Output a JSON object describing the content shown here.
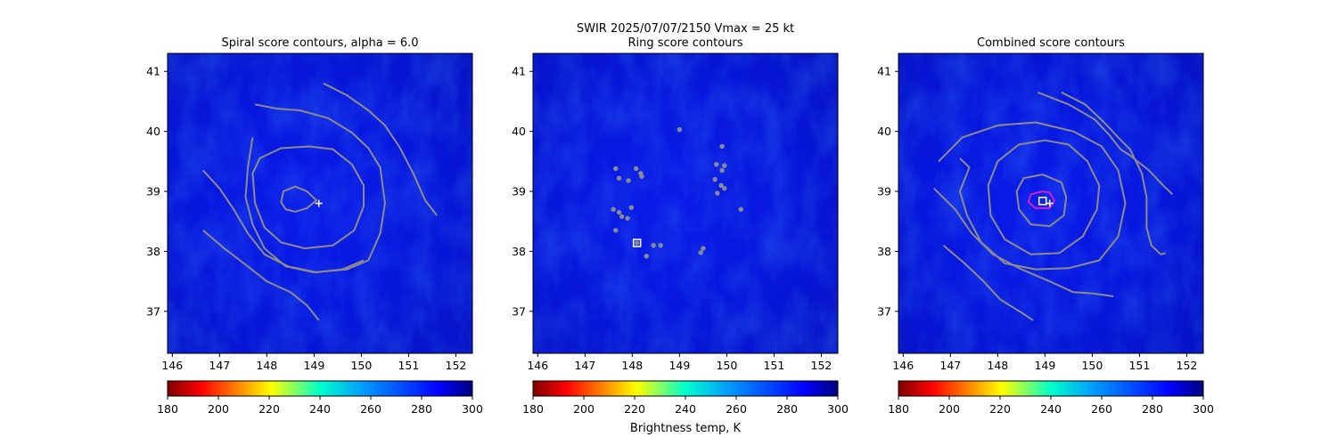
{
  "figure": {
    "suptitle_line1": "SWIR  2025/07/07/2150    Vmax = 25 kt",
    "colorbar_label": "Brightness temp, K"
  },
  "chart_data": [
    {
      "type": "heatmap",
      "title": "Spiral score contours, alpha =  6.0",
      "xlim": [
        145.9,
        152.35
      ],
      "ylim": [
        36.3,
        41.3
      ],
      "xticks": [
        146,
        147,
        148,
        149,
        150,
        151,
        152
      ],
      "yticks": [
        37,
        38,
        39,
        40,
        41
      ],
      "background_colormap": "jet",
      "color_range": [
        180,
        300
      ],
      "colorbar_ticks": [
        180,
        200,
        220,
        240,
        260,
        280,
        300
      ],
      "contour_color": "#8c8c8c",
      "markers": [
        {
          "kind": "plus",
          "x": 149.1,
          "y": 38.8,
          "color": "#ffffff"
        }
      ],
      "contours": [
        {
          "points": [
            [
              148.85,
              39.0
            ],
            [
              148.6,
              39.08
            ],
            [
              148.35,
              39.0
            ],
            [
              148.3,
              38.82
            ],
            [
              148.4,
              38.7
            ],
            [
              148.6,
              38.66
            ],
            [
              148.85,
              38.72
            ],
            [
              149.05,
              38.85
            ],
            [
              148.85,
              39.0
            ]
          ],
          "closed": true
        },
        {
          "points": [
            [
              148.9,
              39.75
            ],
            [
              148.3,
              39.72
            ],
            [
              147.85,
              39.55
            ],
            [
              147.7,
              39.3
            ],
            [
              147.75,
              38.8
            ],
            [
              147.95,
              38.4
            ],
            [
              148.3,
              38.15
            ],
            [
              148.8,
              38.05
            ],
            [
              149.4,
              38.1
            ],
            [
              149.85,
              38.35
            ],
            [
              150.05,
              38.75
            ],
            [
              150.05,
              39.1
            ],
            [
              149.8,
              39.45
            ],
            [
              149.4,
              39.7
            ],
            [
              148.9,
              39.75
            ]
          ],
          "closed": true
        },
        {
          "points": [
            [
              147.75,
              40.45
            ],
            [
              148.2,
              40.38
            ],
            [
              148.7,
              40.35
            ],
            [
              149.3,
              40.22
            ],
            [
              149.8,
              39.98
            ],
            [
              150.15,
              39.72
            ],
            [
              150.4,
              39.4
            ],
            [
              150.5,
              38.8
            ],
            [
              150.4,
              38.3
            ],
            [
              150.15,
              37.85
            ],
            [
              149.7,
              37.7
            ],
            [
              149.0,
              37.65
            ],
            [
              148.4,
              37.75
            ],
            [
              147.95,
              38.05
            ],
            [
              147.7,
              38.45
            ],
            [
              147.55,
              38.9
            ],
            [
              147.6,
              39.4
            ],
            [
              147.7,
              39.9
            ]
          ],
          "closed": false
        },
        {
          "points": [
            [
              146.65,
              39.35
            ],
            [
              147.0,
              39.05
            ],
            [
              147.3,
              38.7
            ],
            [
              147.6,
              38.3
            ],
            [
              147.95,
              37.95
            ],
            [
              148.45,
              37.75
            ],
            [
              149.05,
              37.65
            ],
            [
              149.6,
              37.7
            ],
            [
              150.05,
              37.85
            ]
          ],
          "closed": false
        },
        {
          "points": [
            [
              149.2,
              40.8
            ],
            [
              149.7,
              40.6
            ],
            [
              150.15,
              40.35
            ],
            [
              150.5,
              40.1
            ],
            [
              150.8,
              39.75
            ],
            [
              151.1,
              39.3
            ],
            [
              151.35,
              38.85
            ],
            [
              151.6,
              38.6
            ]
          ],
          "closed": false
        },
        {
          "points": [
            [
              146.65,
              38.35
            ],
            [
              147.1,
              38.05
            ],
            [
              147.6,
              37.75
            ],
            [
              148.0,
              37.5
            ],
            [
              148.5,
              37.32
            ],
            [
              148.85,
              37.1
            ],
            [
              149.1,
              36.85
            ]
          ],
          "closed": false
        }
      ]
    },
    {
      "type": "heatmap",
      "title": "Ring score contours",
      "xlim": [
        145.9,
        152.35
      ],
      "ylim": [
        36.3,
        41.3
      ],
      "xticks": [
        146,
        147,
        148,
        149,
        150,
        151,
        152
      ],
      "yticks": [
        37,
        38,
        39,
        40,
        41
      ],
      "background_colormap": "jet",
      "color_range": [
        180,
        300
      ],
      "colorbar_ticks": [
        180,
        200,
        220,
        240,
        260,
        280,
        300
      ],
      "contour_color": "#8c8c8c",
      "markers": [
        {
          "kind": "square",
          "x": 148.1,
          "y": 38.14,
          "color": "#ffffff"
        }
      ],
      "blobs": [
        [
          147.65,
          39.38
        ],
        [
          147.72,
          39.22
        ],
        [
          147.92,
          39.18
        ],
        [
          148.08,
          39.38
        ],
        [
          148.18,
          39.3
        ],
        [
          148.2,
          39.25
        ],
        [
          147.6,
          38.7
        ],
        [
          147.72,
          38.65
        ],
        [
          147.78,
          38.58
        ],
        [
          147.9,
          38.55
        ],
        [
          147.98,
          38.73
        ],
        [
          147.65,
          38.35
        ],
        [
          148.1,
          38.14
        ],
        [
          148.3,
          37.92
        ],
        [
          148.45,
          38.1
        ],
        [
          148.6,
          38.1
        ],
        [
          149.0,
          40.03
        ],
        [
          149.9,
          39.75
        ],
        [
          149.78,
          39.45
        ],
        [
          149.95,
          39.43
        ],
        [
          149.9,
          39.35
        ],
        [
          149.75,
          39.2
        ],
        [
          149.88,
          39.1
        ],
        [
          149.95,
          39.05
        ],
        [
          149.8,
          38.97
        ],
        [
          150.3,
          38.7
        ],
        [
          149.5,
          38.05
        ],
        [
          149.45,
          37.98
        ]
      ]
    },
    {
      "type": "heatmap",
      "title": "Combined score contours",
      "xlim": [
        145.9,
        152.35
      ],
      "ylim": [
        36.3,
        41.3
      ],
      "xticks": [
        146,
        147,
        148,
        149,
        150,
        151,
        152
      ],
      "yticks": [
        37,
        38,
        39,
        40,
        41
      ],
      "background_colormap": "jet",
      "color_range": [
        180,
        300
      ],
      "colorbar_ticks": [
        180,
        200,
        220,
        240,
        260,
        280,
        300
      ],
      "contour_color": "#8c8c8c",
      "markers": [
        {
          "kind": "square",
          "x": 148.95,
          "y": 38.84,
          "color": "#ffffff"
        },
        {
          "kind": "plus",
          "x": 149.1,
          "y": 38.8,
          "color": "#ffffff"
        }
      ],
      "magenta_ring": [
        [
          148.95,
          39.0
        ],
        [
          148.7,
          38.95
        ],
        [
          148.65,
          38.82
        ],
        [
          148.8,
          38.72
        ],
        [
          149.1,
          38.72
        ],
        [
          149.2,
          38.85
        ],
        [
          149.1,
          38.98
        ],
        [
          148.95,
          39.0
        ]
      ],
      "contours": [
        {
          "points": [
            [
              148.95,
              39.28
            ],
            [
              148.55,
              39.22
            ],
            [
              148.4,
              39.0
            ],
            [
              148.45,
              38.7
            ],
            [
              148.7,
              38.45
            ],
            [
              149.1,
              38.42
            ],
            [
              149.4,
              38.6
            ],
            [
              149.45,
              38.9
            ],
            [
              149.35,
              39.15
            ],
            [
              148.95,
              39.28
            ]
          ],
          "closed": true
        },
        {
          "points": [
            [
              149.0,
              39.85
            ],
            [
              148.45,
              39.78
            ],
            [
              148.0,
              39.5
            ],
            [
              147.8,
              39.1
            ],
            [
              147.85,
              38.6
            ],
            [
              148.15,
              38.2
            ],
            [
              148.7,
              37.95
            ],
            [
              149.3,
              37.97
            ],
            [
              149.8,
              38.25
            ],
            [
              150.1,
              38.7
            ],
            [
              150.15,
              39.1
            ],
            [
              149.9,
              39.5
            ],
            [
              149.5,
              39.78
            ],
            [
              149.0,
              39.85
            ]
          ],
          "closed": true
        },
        {
          "points": [
            [
              146.75,
              39.5
            ],
            [
              147.25,
              39.9
            ],
            [
              148.0,
              40.1
            ],
            [
              148.8,
              40.15
            ],
            [
              149.6,
              40.0
            ],
            [
              150.2,
              39.75
            ],
            [
              150.55,
              39.35
            ],
            [
              150.7,
              38.8
            ],
            [
              150.55,
              38.25
            ],
            [
              150.15,
              37.85
            ],
            [
              149.5,
              37.72
            ],
            [
              148.8,
              37.7
            ],
            [
              148.15,
              37.8
            ],
            [
              147.65,
              38.15
            ],
            [
              147.35,
              38.6
            ],
            [
              147.2,
              39.0
            ],
            [
              147.4,
              39.4
            ],
            [
              147.2,
              39.55
            ]
          ],
          "closed": false
        },
        {
          "points": [
            [
              146.65,
              39.05
            ],
            [
              147.1,
              38.7
            ],
            [
              147.45,
              38.3
            ],
            [
              147.9,
              37.95
            ],
            [
              148.5,
              37.7
            ],
            [
              149.1,
              37.5
            ],
            [
              149.6,
              37.32
            ],
            [
              150.0,
              37.3
            ],
            [
              150.45,
              37.25
            ]
          ],
          "closed": false
        },
        {
          "points": [
            [
              149.35,
              40.65
            ],
            [
              149.85,
              40.45
            ],
            [
              150.25,
              40.15
            ],
            [
              150.55,
              39.9
            ],
            [
              150.8,
              39.7
            ],
            [
              151.05,
              39.3
            ],
            [
              151.15,
              38.9
            ],
            [
              151.15,
              38.4
            ],
            [
              151.25,
              38.1
            ],
            [
              151.45,
              37.95
            ],
            [
              151.55,
              37.97
            ]
          ],
          "closed": false
        },
        {
          "points": [
            [
              148.85,
              40.65
            ],
            [
              149.5,
              40.45
            ],
            [
              150.05,
              40.2
            ],
            [
              150.35,
              39.95
            ],
            [
              150.6,
              39.7
            ],
            [
              150.8,
              39.6
            ],
            [
              151.2,
              39.35
            ],
            [
              151.5,
              39.1
            ],
            [
              151.7,
              38.95
            ]
          ],
          "closed": false
        },
        {
          "points": [
            [
              146.85,
              38.1
            ],
            [
              147.3,
              37.8
            ],
            [
              147.7,
              37.5
            ],
            [
              148.05,
              37.2
            ],
            [
              148.5,
              36.98
            ],
            [
              148.75,
              36.85
            ]
          ],
          "closed": false
        }
      ]
    }
  ]
}
